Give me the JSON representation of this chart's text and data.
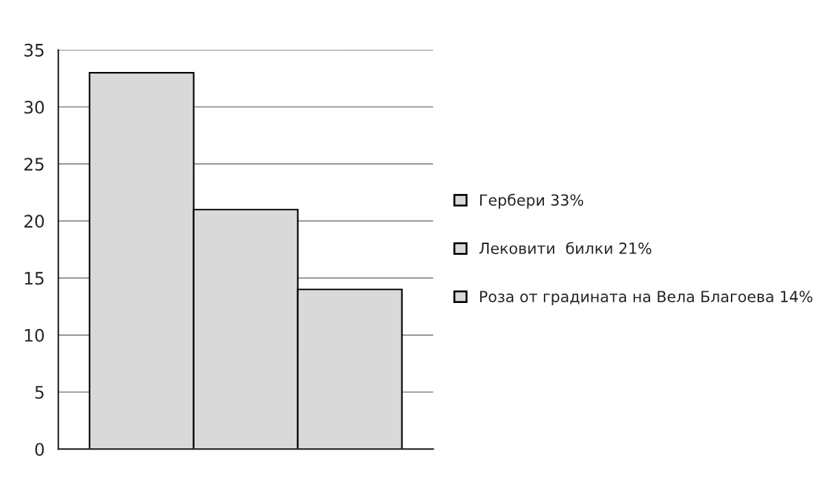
{
  "chart_data": {
    "type": "bar",
    "categories": [
      null,
      null,
      null
    ],
    "series": [
      {
        "name": "Гербери 33%",
        "color": "#d9d9d9",
        "values": [
          33,
          null,
          null
        ]
      },
      {
        "name": "Лековити  билки 21%",
        "color": "#d9d9d9",
        "values": [
          null,
          21,
          null
        ]
      },
      {
        "name": "Роза от градината на Вела Благоева 14%",
        "color": "#d9d9d9",
        "values": [
          null,
          null,
          14
        ]
      }
    ],
    "ylim": [
      0,
      35
    ],
    "yticks": [
      0,
      5,
      10,
      15,
      20,
      25,
      30,
      35
    ],
    "grid": "y",
    "legend": "right"
  }
}
